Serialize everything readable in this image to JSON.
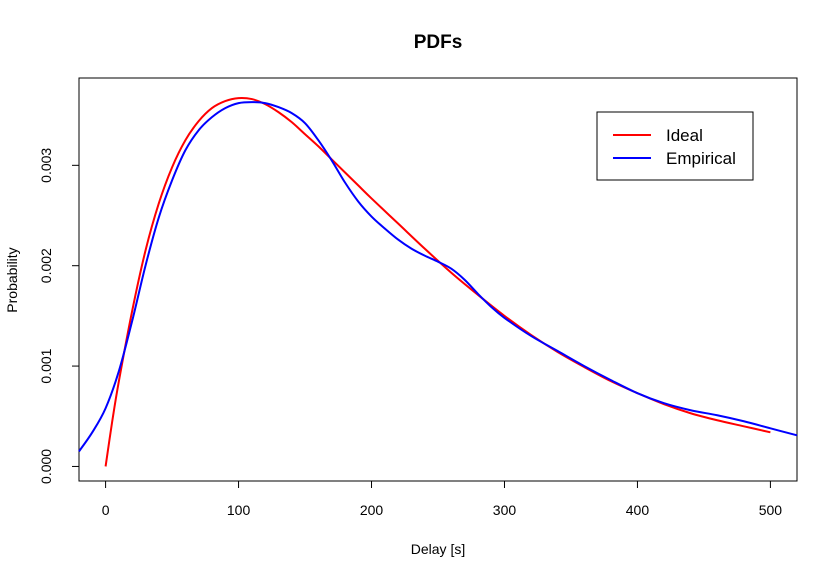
{
  "chart_data": {
    "type": "line",
    "title": "PDFs",
    "xlabel": "Delay [s]",
    "ylabel": "Probability",
    "xlim": [
      -20,
      520
    ],
    "ylim": [
      -0.000145,
      0.00387
    ],
    "x_ticks": [
      "0",
      "100",
      "200",
      "300",
      "400",
      "500"
    ],
    "y_ticks": [
      "0.000",
      "0.001",
      "0.002",
      "0.003"
    ],
    "legend_position": "top-right",
    "grid": false,
    "series": [
      {
        "name": "Ideal",
        "color": "#ff0000",
        "points": [
          [
            0,
            0.0
          ],
          [
            5,
            0.00045
          ],
          [
            10,
            0.00085
          ],
          [
            20,
            0.00155
          ],
          [
            30,
            0.00215
          ],
          [
            40,
            0.00262
          ],
          [
            50,
            0.00298
          ],
          [
            60,
            0.00325
          ],
          [
            70,
            0.00344
          ],
          [
            80,
            0.00357
          ],
          [
            90,
            0.00364
          ],
          [
            100,
            0.00367
          ],
          [
            110,
            0.00366
          ],
          [
            120,
            0.00361
          ],
          [
            130,
            0.00353
          ],
          [
            140,
            0.00343
          ],
          [
            150,
            0.00331
          ],
          [
            160,
            0.00319
          ],
          [
            170,
            0.00306
          ],
          [
            180,
            0.00293
          ],
          [
            190,
            0.0028
          ],
          [
            200,
            0.00267
          ],
          [
            220,
            0.00242
          ],
          [
            240,
            0.00217
          ],
          [
            260,
            0.00193
          ],
          [
            280,
            0.00171
          ],
          [
            300,
            0.0015
          ],
          [
            320,
            0.00131
          ],
          [
            340,
            0.00114
          ],
          [
            360,
            0.00099
          ],
          [
            380,
            0.00085
          ],
          [
            400,
            0.00073
          ],
          [
            420,
            0.00062
          ],
          [
            440,
            0.00053
          ],
          [
            460,
            0.00046
          ],
          [
            480,
            0.0004
          ],
          [
            500,
            0.00034
          ]
        ]
      },
      {
        "name": "Empirical",
        "color": "#0000ff",
        "points": [
          [
            -20,
            0.00015
          ],
          [
            -10,
            0.00034
          ],
          [
            0,
            0.00058
          ],
          [
            10,
            0.00095
          ],
          [
            20,
            0.00145
          ],
          [
            30,
            0.002
          ],
          [
            40,
            0.00248
          ],
          [
            50,
            0.00285
          ],
          [
            60,
            0.00315
          ],
          [
            70,
            0.00335
          ],
          [
            80,
            0.00348
          ],
          [
            90,
            0.00357
          ],
          [
            100,
            0.00362
          ],
          [
            110,
            0.00363
          ],
          [
            120,
            0.00362
          ],
          [
            130,
            0.00358
          ],
          [
            140,
            0.00352
          ],
          [
            150,
            0.00342
          ],
          [
            160,
            0.00325
          ],
          [
            170,
            0.00305
          ],
          [
            180,
            0.00283
          ],
          [
            190,
            0.00264
          ],
          [
            200,
            0.00249
          ],
          [
            210,
            0.00237
          ],
          [
            220,
            0.00226
          ],
          [
            230,
            0.00217
          ],
          [
            240,
            0.0021
          ],
          [
            250,
            0.00204
          ],
          [
            260,
            0.00197
          ],
          [
            270,
            0.00186
          ],
          [
            280,
            0.00172
          ],
          [
            290,
            0.00159
          ],
          [
            300,
            0.00148
          ],
          [
            320,
            0.0013
          ],
          [
            340,
            0.00115
          ],
          [
            360,
            0.001
          ],
          [
            380,
            0.00086
          ],
          [
            400,
            0.00073
          ],
          [
            420,
            0.00063
          ],
          [
            440,
            0.00056
          ],
          [
            460,
            0.00051
          ],
          [
            480,
            0.00045
          ],
          [
            500,
            0.00038
          ],
          [
            520,
            0.00031
          ]
        ]
      }
    ]
  }
}
